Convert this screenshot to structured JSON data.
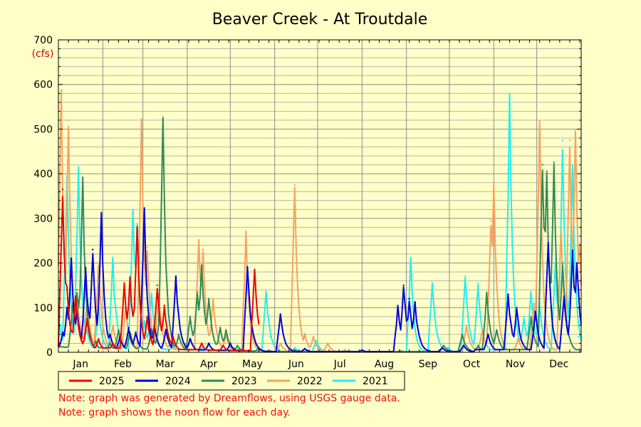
{
  "chart_data": {
    "type": "line",
    "title": "Beaver Creek - At Troutdale",
    "ylabel": "(cfs)",
    "ylim": [
      0,
      700
    ],
    "yticks": [
      0,
      100,
      200,
      300,
      400,
      500,
      600,
      700
    ],
    "months": [
      "Jan",
      "Feb",
      "Mar",
      "Apr",
      "May",
      "Jun",
      "Jul",
      "Aug",
      "Sep",
      "Oct",
      "Nov",
      "Dec"
    ],
    "grid": true,
    "legend_position": "bottom",
    "series": [
      {
        "name": "2025",
        "color": "#ee0000",
        "peaks": [
          [
            3,
            365
          ],
          [
            6,
            140
          ],
          [
            12,
            125
          ],
          [
            20,
            75
          ],
          [
            28,
            30
          ],
          [
            38,
            20
          ],
          [
            46,
            155
          ],
          [
            50,
            165
          ],
          [
            55,
            275
          ],
          [
            62,
            80
          ],
          [
            69,
            150
          ],
          [
            74,
            105
          ],
          [
            80,
            35
          ],
          [
            100,
            20
          ],
          [
            115,
            15
          ],
          [
            137,
            185
          ]
        ]
      },
      {
        "name": "2024",
        "color": "#0000dd",
        "peaks": [
          [
            3,
            45
          ],
          [
            6,
            100
          ],
          [
            9,
            210
          ],
          [
            13,
            95
          ],
          [
            19,
            190
          ],
          [
            24,
            230
          ],
          [
            30,
            300
          ],
          [
            36,
            40
          ],
          [
            43,
            35
          ],
          [
            49,
            55
          ],
          [
            54,
            45
          ],
          [
            60,
            310
          ],
          [
            67,
            60
          ],
          [
            75,
            50
          ],
          [
            82,
            170
          ],
          [
            92,
            30
          ],
          [
            105,
            20
          ],
          [
            120,
            20
          ],
          [
            132,
            190
          ],
          [
            155,
            85
          ],
          [
            172,
            8
          ],
          [
            212,
            5
          ],
          [
            237,
            100
          ],
          [
            241,
            150
          ],
          [
            245,
            120
          ],
          [
            249,
            110
          ],
          [
            268,
            10
          ],
          [
            283,
            15
          ],
          [
            300,
            40
          ],
          [
            314,
            130
          ],
          [
            320,
            100
          ],
          [
            333,
            90
          ],
          [
            342,
            245
          ],
          [
            353,
            125
          ],
          [
            359,
            225
          ],
          [
            362,
            200
          ]
        ]
      },
      {
        "name": "2023",
        "color": "#2e8b57",
        "peaks": [
          [
            10,
            110
          ],
          [
            13,
            140
          ],
          [
            17,
            380
          ],
          [
            26,
            25
          ],
          [
            36,
            20
          ],
          [
            42,
            50
          ],
          [
            50,
            45
          ],
          [
            57,
            15
          ],
          [
            65,
            50
          ],
          [
            70,
            60
          ],
          [
            73,
            520
          ],
          [
            84,
            40
          ],
          [
            92,
            80
          ],
          [
            97,
            135
          ],
          [
            100,
            195
          ],
          [
            105,
            120
          ],
          [
            113,
            55
          ],
          [
            117,
            50
          ],
          [
            125,
            15
          ],
          [
            140,
            10
          ],
          [
            165,
            5
          ],
          [
            239,
            3
          ],
          [
            269,
            15
          ],
          [
            282,
            40
          ],
          [
            293,
            15
          ],
          [
            299,
            130
          ],
          [
            306,
            50
          ],
          [
            330,
            80
          ],
          [
            338,
            420
          ],
          [
            341,
            405
          ],
          [
            346,
            425
          ],
          [
            352,
            200
          ]
        ]
      },
      {
        "name": "2022",
        "color": "#f4a460",
        "peaks": [
          [
            2,
            575
          ],
          [
            7,
            520
          ],
          [
            13,
            130
          ],
          [
            20,
            120
          ],
          [
            28,
            195
          ],
          [
            38,
            60
          ],
          [
            47,
            100
          ],
          [
            58,
            515
          ],
          [
            62,
            235
          ],
          [
            70,
            130
          ],
          [
            78,
            20
          ],
          [
            98,
            250
          ],
          [
            101,
            230
          ],
          [
            108,
            120
          ],
          [
            117,
            40
          ],
          [
            131,
            265
          ],
          [
            155,
            20
          ],
          [
            165,
            375
          ],
          [
            172,
            40
          ],
          [
            178,
            35
          ],
          [
            188,
            20
          ],
          [
            200,
            5
          ],
          [
            285,
            60
          ],
          [
            296,
            50
          ],
          [
            302,
            295
          ],
          [
            304,
            380
          ],
          [
            321,
            30
          ],
          [
            332,
            110
          ],
          [
            336,
            505
          ],
          [
            351,
            280
          ],
          [
            357,
            475
          ],
          [
            361,
            485
          ],
          [
            364,
            235
          ]
        ]
      },
      {
        "name": "2021",
        "color": "#22eeee",
        "peaks": [
          [
            1,
            60
          ],
          [
            6,
            400
          ],
          [
            14,
            415
          ],
          [
            20,
            50
          ],
          [
            28,
            100
          ],
          [
            38,
            205
          ],
          [
            40,
            100
          ],
          [
            52,
            310
          ],
          [
            55,
            280
          ],
          [
            60,
            70
          ],
          [
            65,
            130
          ],
          [
            80,
            15
          ],
          [
            100,
            10
          ],
          [
            126,
            10
          ],
          [
            145,
            135
          ],
          [
            148,
            35
          ],
          [
            165,
            10
          ],
          [
            180,
            25
          ],
          [
            246,
            205
          ],
          [
            261,
            155
          ],
          [
            272,
            10
          ],
          [
            284,
            170
          ],
          [
            293,
            155
          ],
          [
            315,
            555
          ],
          [
            325,
            80
          ],
          [
            330,
            135
          ],
          [
            336,
            110
          ],
          [
            347,
            210
          ],
          [
            352,
            475
          ],
          [
            359,
            415
          ],
          [
            363,
            35
          ]
        ]
      }
    ]
  },
  "notes": [
    "Note: graph was generated by Dreamflows, using USGS gauge data.",
    "Note: graph shows the noon flow for each day."
  ]
}
